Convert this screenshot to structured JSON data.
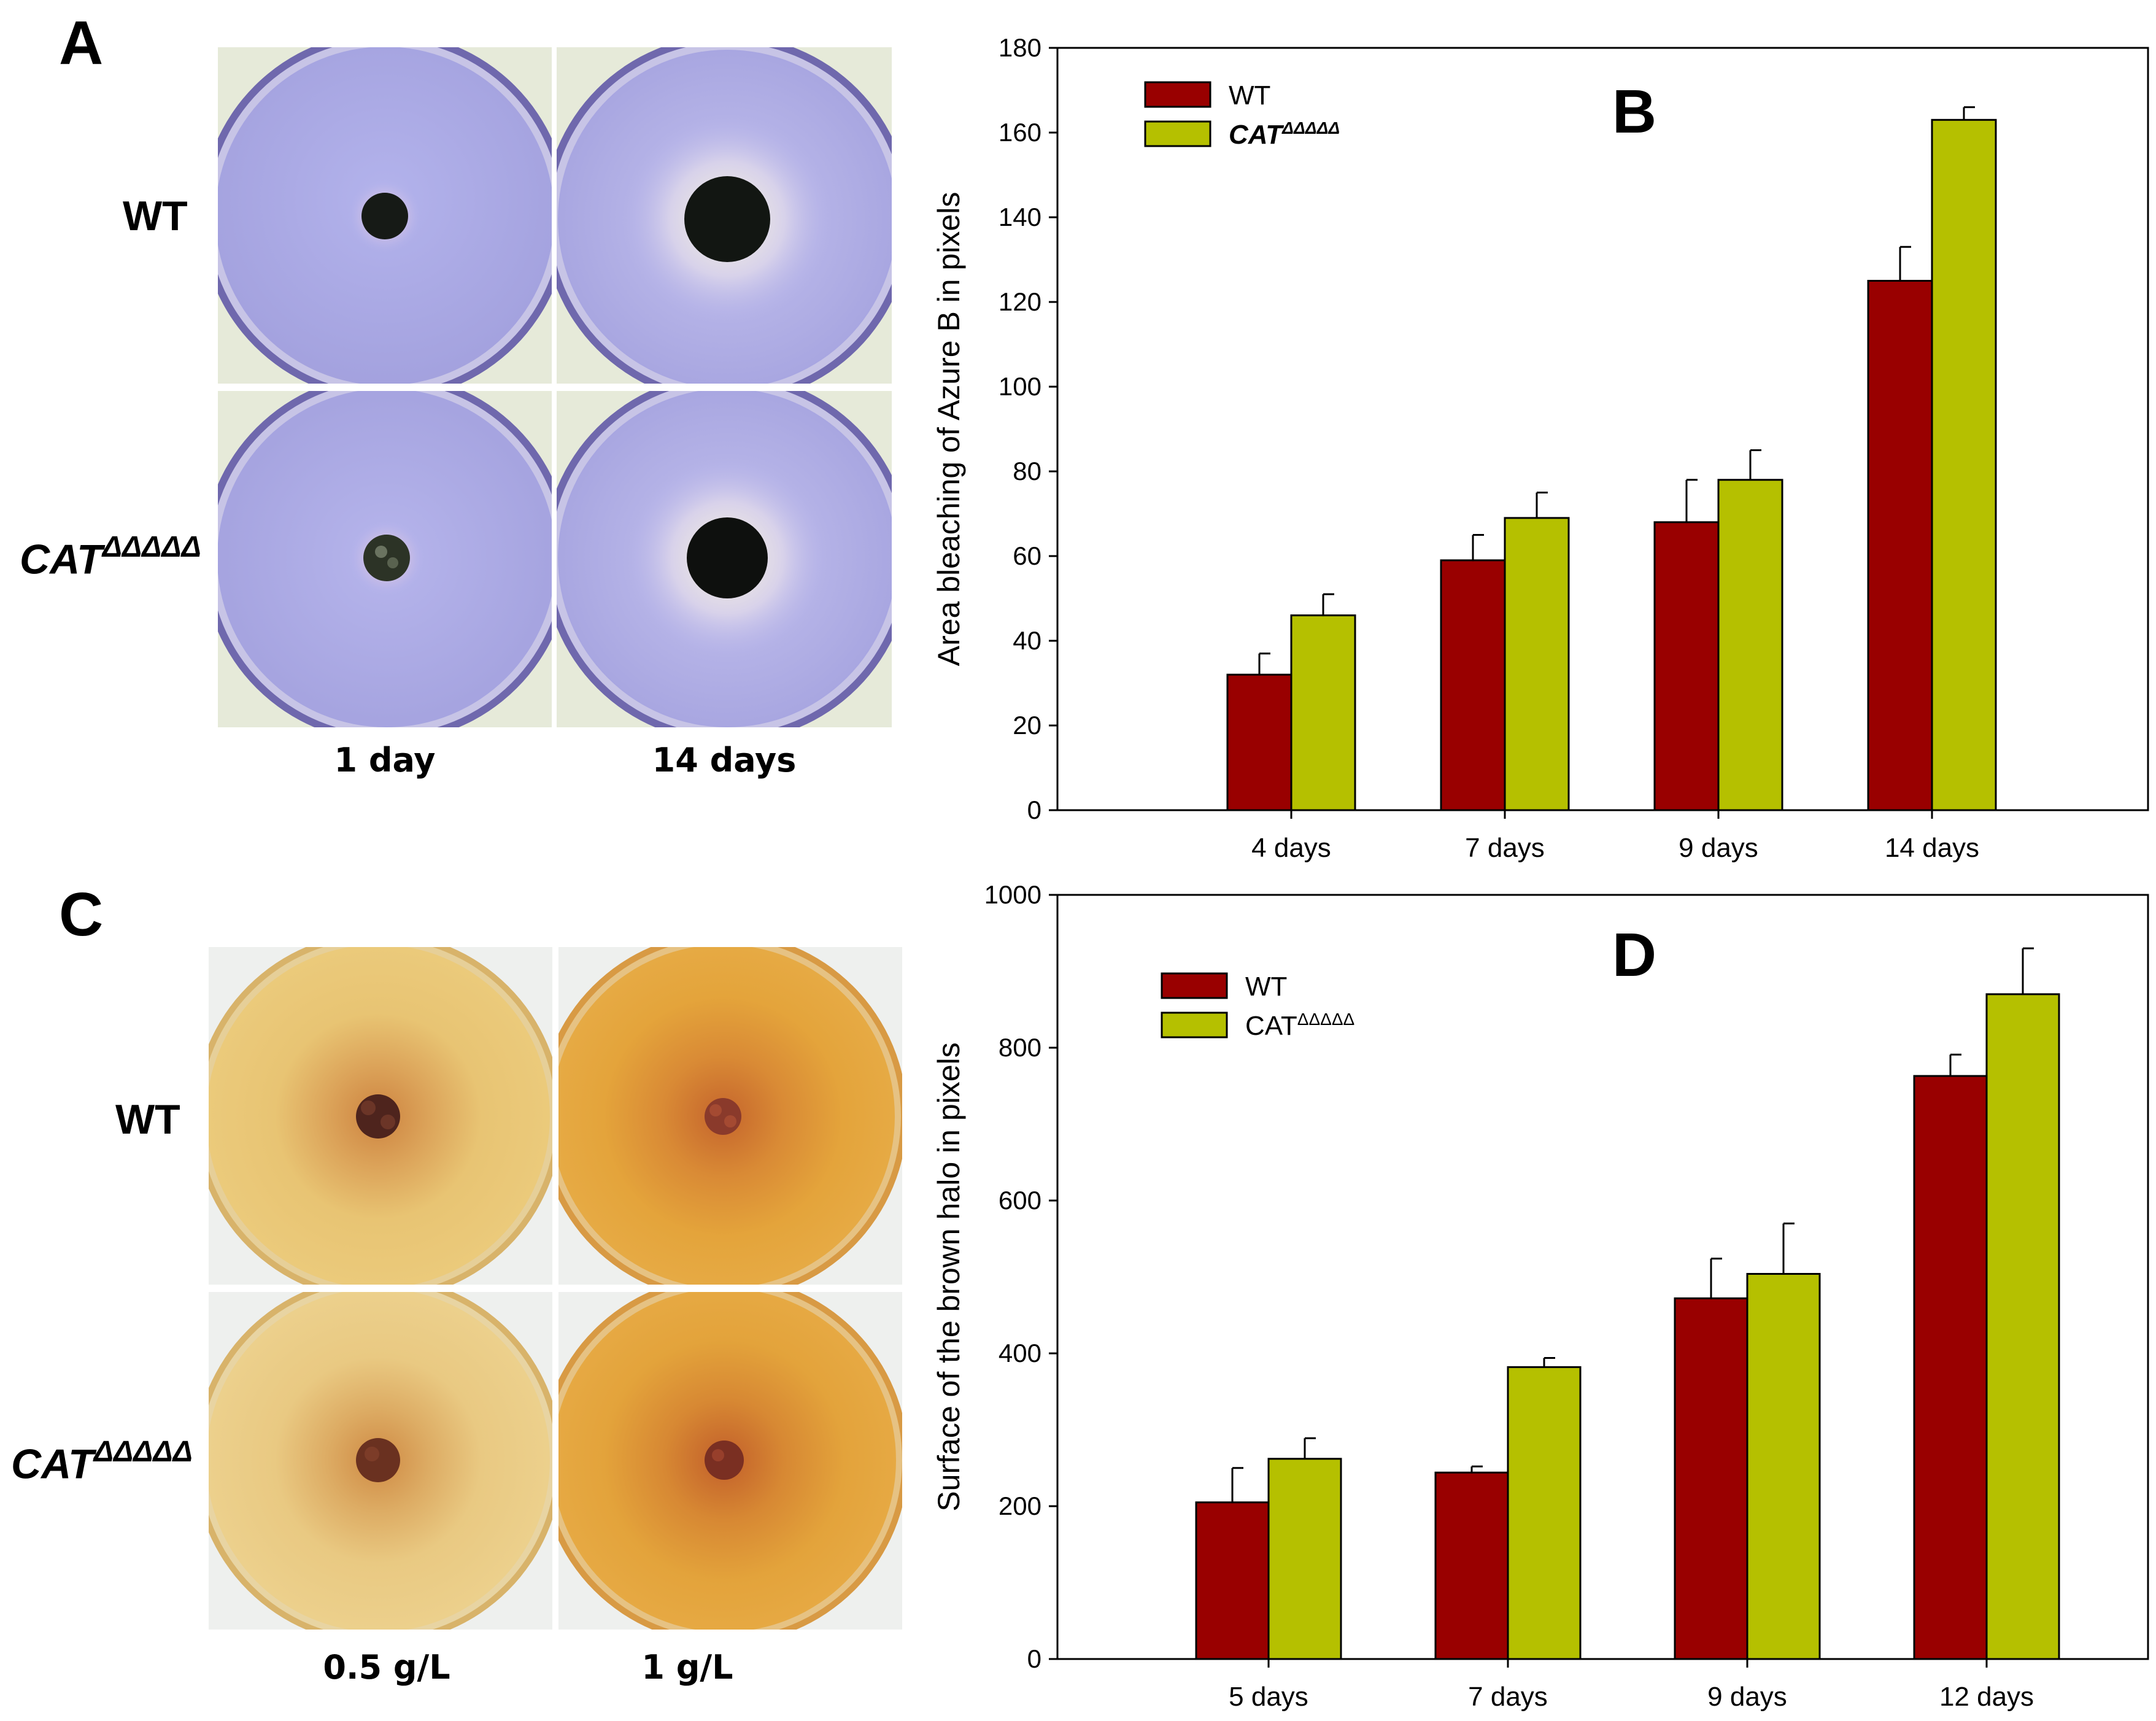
{
  "panels": {
    "a": {
      "letter": "A",
      "row_labels": [
        "WT",
        "CAT",
        "ΔΔΔΔΔ"
      ],
      "col_labels": [
        "1 day",
        "14 days"
      ],
      "plate_colors": {
        "medium": "#a9a9e6",
        "rim": "#7d76be",
        "halo": "#fbf4df",
        "colony": "#141814"
      }
    },
    "c": {
      "letter": "C",
      "row_labels": [
        "WT",
        "CAT",
        "ΔΔΔΔΔ"
      ],
      "col_labels": [
        "0.5 g/L",
        "1 g/L"
      ],
      "plate_colors": {
        "medium_light": "#e8c574",
        "medium_dark": "#e3a43a",
        "halo": "#c97a2e",
        "colony": "#5a2a20"
      }
    }
  },
  "chart_data": [
    {
      "panel": "B",
      "type": "bar",
      "categories": [
        "4 days",
        "7 days",
        "9 days",
        "14 days"
      ],
      "series": [
        {
          "name": "WT",
          "values": [
            32,
            59,
            68,
            125
          ],
          "errors": [
            5,
            6,
            10,
            8
          ],
          "color": "#990000"
        },
        {
          "name": "CAT",
          "name_sup": "ΔΔΔΔΔ",
          "values": [
            46,
            69,
            78,
            163
          ],
          "errors": [
            5,
            6,
            7,
            3
          ],
          "color": "#b5c000"
        }
      ],
      "title": "B",
      "xlabel": "",
      "ylabel": "Area bleaching of Azure B in pixels",
      "ylim": [
        0,
        180
      ],
      "yticks": [
        0,
        20,
        40,
        60,
        80,
        100,
        120,
        140,
        160,
        180
      ],
      "legend_position": "top-left",
      "legend_label_style": "bold-italic"
    },
    {
      "panel": "D",
      "type": "bar",
      "categories": [
        "5 days",
        "7 days",
        "9 days",
        "12 days"
      ],
      "series": [
        {
          "name": "WT",
          "values": [
            205,
            244,
            472,
            763
          ],
          "errors": [
            45,
            8,
            52,
            28
          ],
          "color": "#990000"
        },
        {
          "name": "CAT",
          "name_sup": "ΔΔΔΔΔ",
          "values": [
            262,
            382,
            504,
            870
          ],
          "errors": [
            27,
            12,
            66,
            60
          ],
          "color": "#b5c000"
        }
      ],
      "title": "D",
      "xlabel": "",
      "ylabel": "Surface of the brown halo in pixels",
      "ylim": [
        0,
        1000
      ],
      "yticks": [
        0,
        200,
        400,
        600,
        800,
        1000
      ],
      "legend_position": "top-left",
      "legend_label_style": "normal"
    }
  ]
}
